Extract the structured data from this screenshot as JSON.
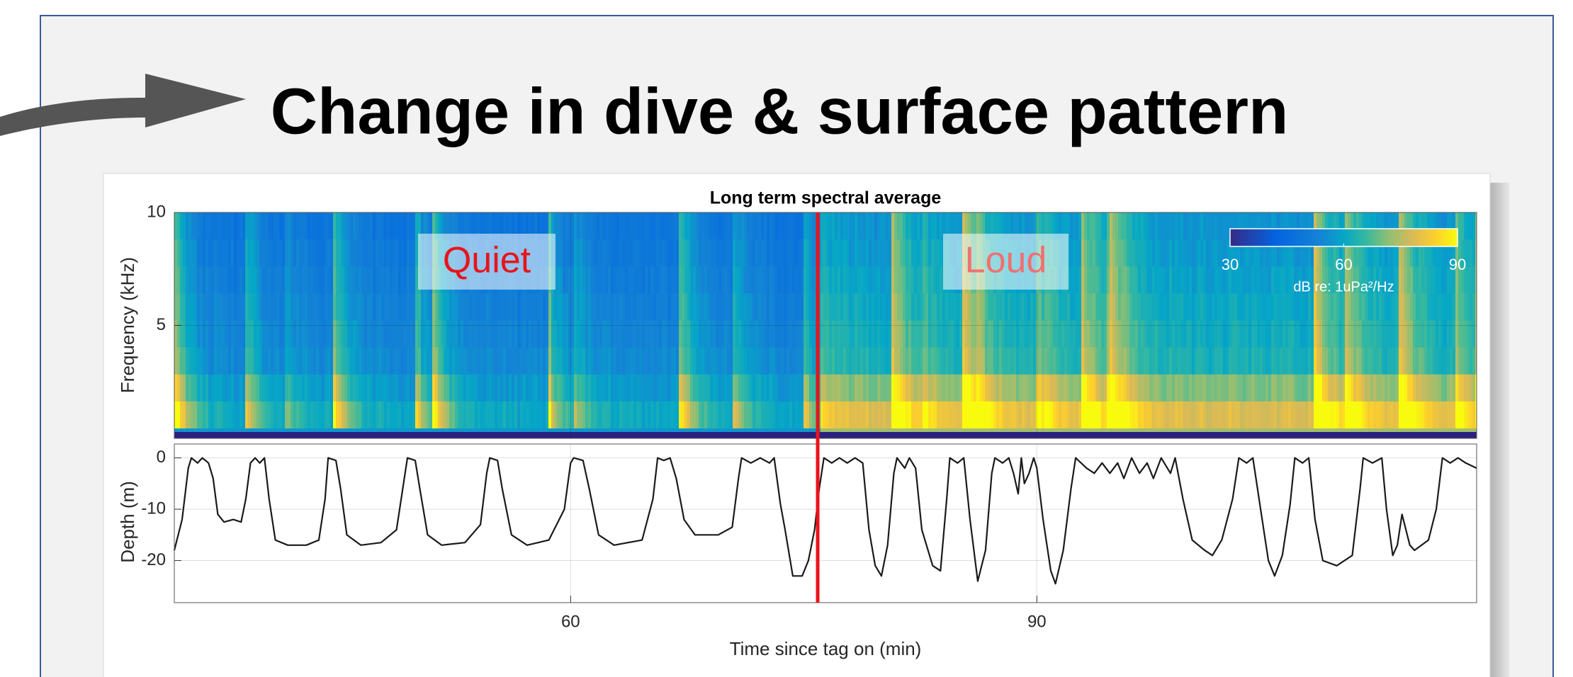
{
  "title": "Change in dive & surface pattern",
  "chart_data": [
    {
      "type": "spectrogram",
      "title": "Long term spectral average",
      "ylabel": "Frequency (kHz)",
      "ylim": [
        0,
        10
      ],
      "yticks": [
        5,
        10
      ],
      "colorbar": {
        "lim": [
          30,
          90
        ],
        "ticks": [
          30,
          60,
          90
        ],
        "label": "dB re: 1uPa²/Hz"
      },
      "annotations": [
        {
          "text": "Quiet",
          "color": "#e8141a"
        },
        {
          "text": "Loud",
          "color": "#f07070"
        }
      ]
    },
    {
      "type": "line",
      "xlabel": "Time since tag on (min)",
      "ylabel": "Depth (m)",
      "xlim": [
        34.5,
        118.3
      ],
      "ylim": [
        -28.2,
        2.7
      ],
      "xticks": [
        60,
        90
      ],
      "yticks": [
        0,
        -10,
        -20
      ],
      "grid": true,
      "marker": {
        "x": 75.9,
        "color": "#e8141a"
      },
      "x": [
        34.5,
        35.0,
        35.4,
        35.6,
        36.0,
        36.3,
        36.7,
        37.0,
        37.3,
        37.7,
        38.3,
        38.8,
        39.1,
        39.4,
        39.7,
        40.0,
        40.3,
        40.6,
        41.0,
        41.8,
        43.0,
        43.8,
        44.2,
        44.4,
        44.9,
        45.2,
        45.6,
        46.5,
        47.8,
        48.8,
        49.3,
        49.5,
        50.0,
        50.3,
        50.8,
        51.7,
        53.2,
        54.2,
        54.6,
        54.8,
        55.3,
        55.6,
        56.2,
        57.2,
        58.6,
        59.6,
        60.0,
        60.2,
        60.8,
        61.2,
        61.8,
        62.8,
        64.6,
        65.3,
        65.6,
        66.0,
        66.4,
        66.8,
        67.3,
        68.0,
        69.5,
        70.4,
        70.8,
        71.0,
        71.6,
        72.2,
        72.8,
        73.1,
        73.5,
        73.8,
        74.3,
        74.9,
        75.3,
        75.7,
        76.0,
        76.3,
        76.8,
        77.3,
        77.8,
        78.3,
        78.8,
        79.2,
        79.6,
        80.0,
        80.4,
        80.8,
        81.0,
        81.5,
        81.8,
        82.2,
        82.6,
        83.3,
        83.8,
        84.2,
        84.4,
        84.9,
        85.3,
        85.7,
        86.2,
        86.7,
        87.1,
        87.3,
        87.8,
        88.2,
        88.5,
        88.8,
        89.0,
        89.2,
        89.5,
        89.8,
        90.0,
        90.4,
        90.9,
        91.2,
        91.7,
        92.2,
        92.5,
        93.2,
        93.7,
        94.2,
        94.7,
        95.2,
        95.6,
        96.1,
        96.6,
        97.1,
        97.5,
        98.0,
        98.6,
        98.9,
        99.4,
        100.0,
        100.8,
        101.3,
        101.9,
        102.6,
        103.0,
        103.5,
        103.9,
        104.4,
        104.9,
        105.3,
        105.8,
        106.3,
        106.6,
        107.1,
        107.5,
        107.9,
        108.4,
        109.3,
        110.3,
        110.8,
        111.0,
        111.6,
        112.2,
        112.5,
        112.9,
        113.2,
        113.5,
        114.0,
        114.3,
        115.2,
        115.7,
        116.1,
        116.6,
        117.1,
        117.6,
        118.3
      ],
      "series": [
        {
          "color": "#1a1a1a",
          "values": [
            -18,
            -12,
            -2,
            0,
            -1,
            0,
            -1,
            -4,
            -11,
            -12.5,
            -12,
            -12.5,
            -8,
            -1,
            0,
            -1,
            0,
            -8,
            -16,
            -17,
            -17,
            -16,
            -8,
            0,
            -0.5,
            -6,
            -15,
            -17,
            -16.5,
            -14,
            -4,
            0,
            -0.5,
            -6,
            -15,
            -17,
            -16.5,
            -13,
            -3,
            0,
            -0.5,
            -6,
            -15,
            -17,
            -16,
            -10,
            -1,
            0,
            -0.5,
            -6,
            -15,
            -17,
            -16,
            -8,
            0,
            -0.5,
            0,
            -4,
            -12,
            -15,
            -15,
            -13.5,
            -4,
            0,
            -1,
            0,
            -1,
            0,
            -9,
            -14,
            -23,
            -23,
            -20,
            -14,
            -6,
            0,
            -1,
            0,
            -1,
            0,
            -1,
            -14,
            -21,
            -23,
            -17,
            -3,
            0,
            -2,
            0,
            -2,
            -14,
            -21,
            -22,
            -8,
            0,
            -1,
            0,
            -12,
            -24,
            -18,
            -3,
            0,
            -1,
            0,
            -3,
            -7,
            0,
            -5,
            -3,
            0,
            -2,
            -12,
            -22,
            -24.5,
            -18,
            -6,
            0,
            -2,
            -3,
            -1,
            -3,
            -1,
            -4,
            0,
            -3,
            -1,
            -4,
            0,
            -3,
            0,
            -8,
            -16,
            -18,
            -19,
            -16,
            -8,
            0,
            -1,
            0,
            -10,
            -20,
            -23,
            -19,
            -9,
            0,
            -1,
            0,
            -12,
            -20,
            -21,
            -19,
            -6,
            0,
            -1,
            0,
            -10,
            -19,
            -17,
            -11,
            -17,
            -18,
            -16,
            -10,
            0,
            -1,
            0,
            -1,
            -2
          ]
        }
      ]
    }
  ]
}
